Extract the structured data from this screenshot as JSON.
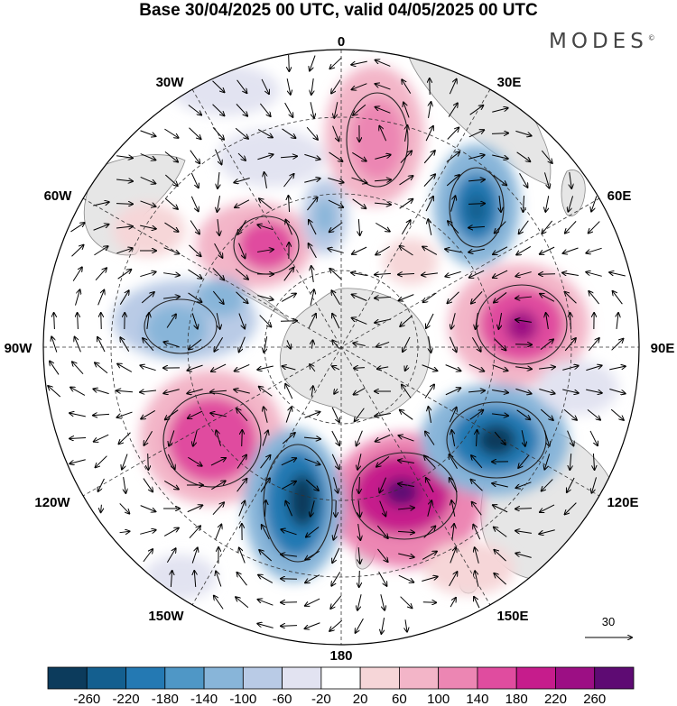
{
  "title": "Base 30/04/2025 00 UTC, valid 04/05/2025 00 UTC",
  "brand": "MODES",
  "brand_mark": "©",
  "longitude_labels": {
    "lon_0": "0",
    "lon_30e": "30E",
    "lon_60e": "60E",
    "lon_90e": "90E",
    "lon_120e": "120E",
    "lon_150e": "150E",
    "lon_180": "180",
    "lon_150w": "150W",
    "lon_120w": "120W",
    "lon_90w": "90W",
    "lon_60w": "60W",
    "lon_30w": "30W"
  },
  "reference_vector": {
    "label": "30"
  },
  "colorbar": {
    "labels": [
      "-260",
      "-220",
      "-180",
      "-140",
      "-100",
      "-60",
      "-20",
      "20",
      "60",
      "100",
      "140",
      "180",
      "220",
      "260"
    ],
    "colors": [
      "#0c3b5c",
      "#145f8f",
      "#2479b3",
      "#4f97c6",
      "#88b5d9",
      "#b9cbe6",
      "#e2e3f1",
      "#ffffff",
      "#f6d6d8",
      "#f3b5c8",
      "#ec86b3",
      "#e04c9f",
      "#c61c8c",
      "#9c0f84",
      "#5e0b73"
    ]
  },
  "colors": {
    "land": "#e8e8e8",
    "ocean": "#ffffff",
    "grid": "#333333"
  }
}
